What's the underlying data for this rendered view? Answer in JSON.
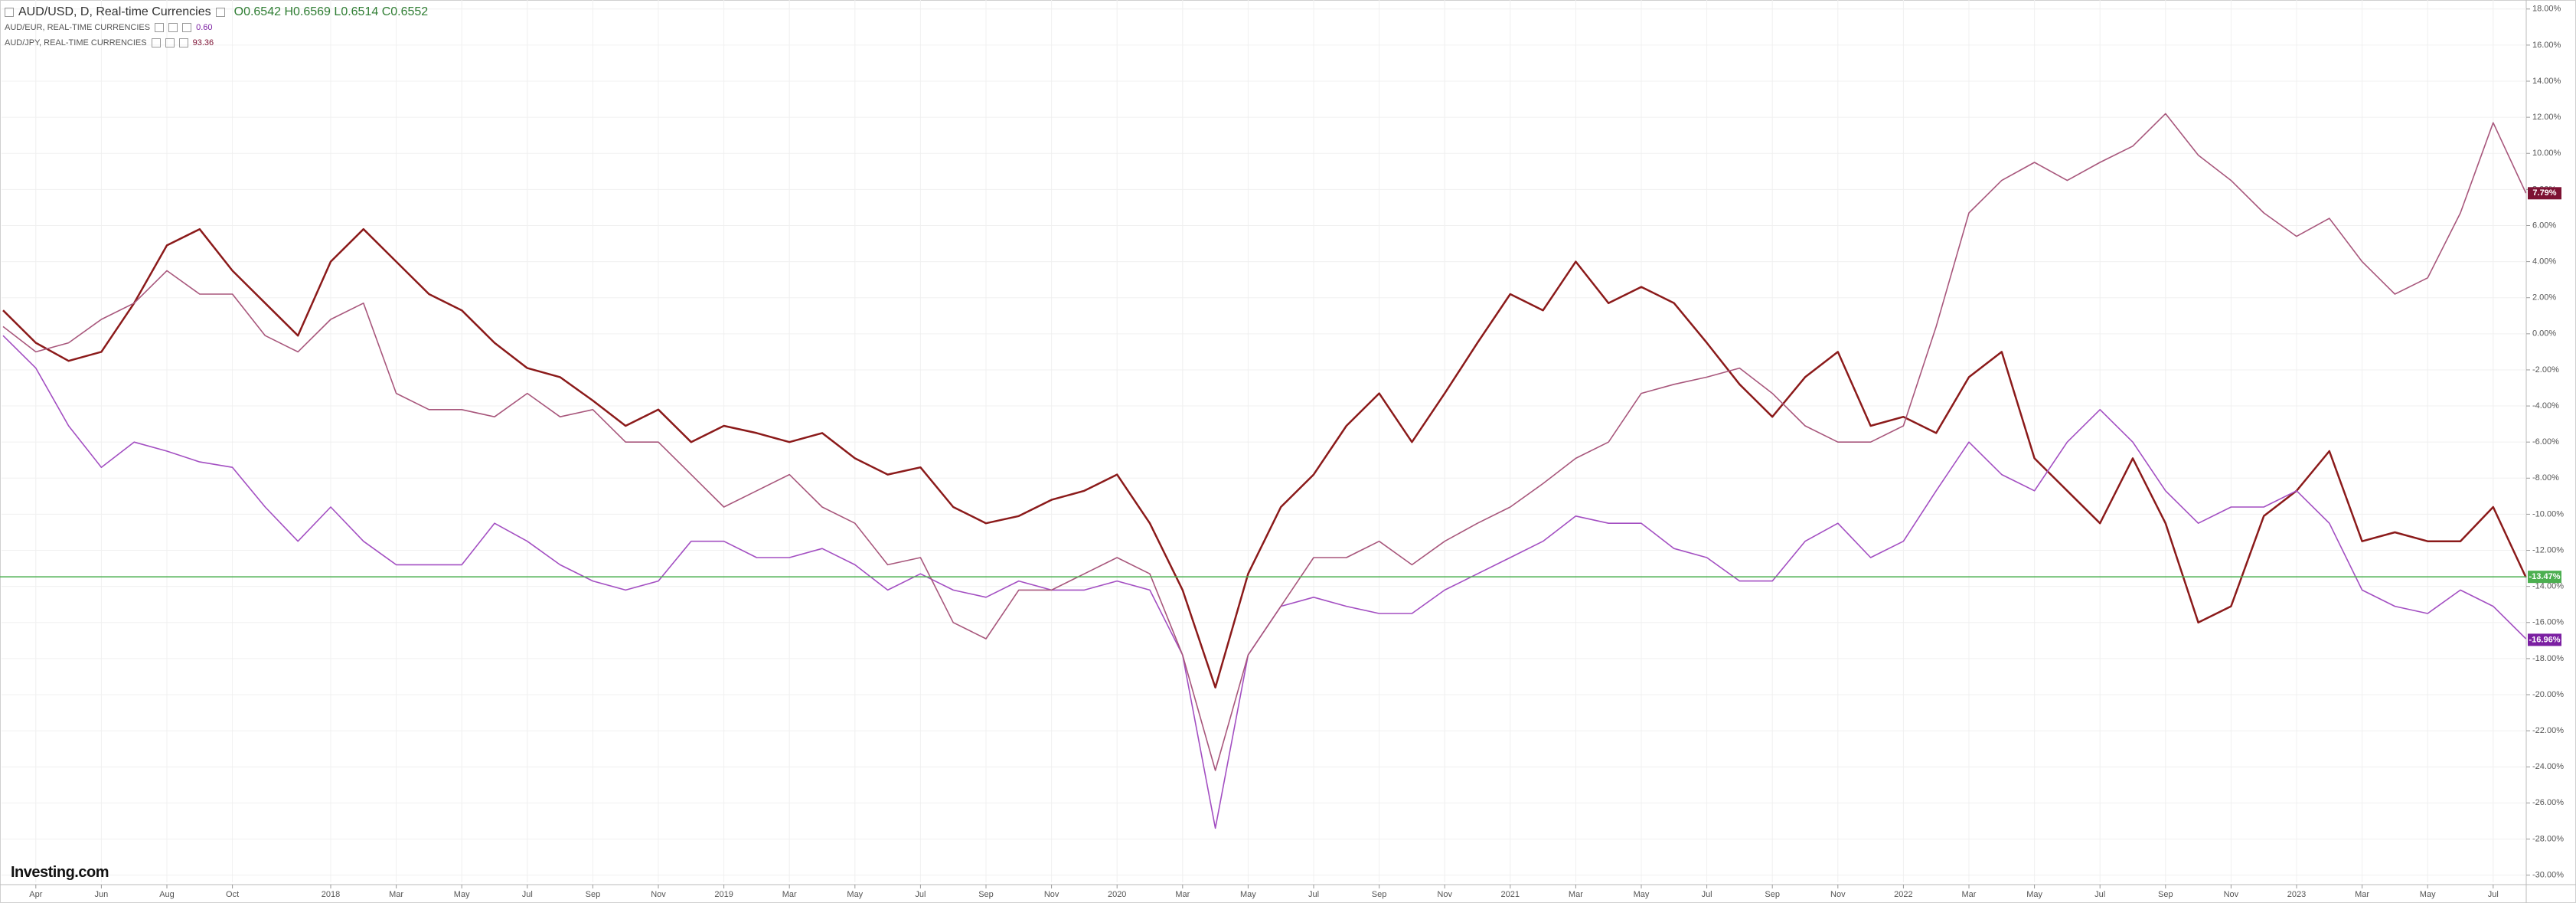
{
  "logo": "Investing.com",
  "chart_data": {
    "type": "line",
    "grid": true,
    "ohlc": [
      {
        "label": "O",
        "value": 0.6542
      },
      {
        "label": "H",
        "value": 0.6569
      },
      {
        "label": "L",
        "value": 0.6514
      },
      {
        "label": "C",
        "value": 0.6552
      }
    ],
    "categories": [
      null,
      "Apr",
      null,
      "Jun",
      null,
      "Aug",
      null,
      "Oct",
      null,
      null,
      "2018",
      null,
      "Mar",
      null,
      "May",
      null,
      "Jul",
      null,
      "Sep",
      null,
      "Nov",
      null,
      "2019",
      null,
      "Mar",
      null,
      "May",
      null,
      "Jul",
      null,
      "Sep",
      null,
      "Nov",
      null,
      "2020",
      null,
      "Mar",
      null,
      "May",
      null,
      "Jul",
      null,
      "Sep",
      null,
      "Nov",
      null,
      "2021",
      null,
      "Mar",
      null,
      "May",
      null,
      "Jul",
      null,
      "Sep",
      null,
      "Nov",
      null,
      "2022",
      null,
      "Mar",
      null,
      "May",
      null,
      "Jul",
      null,
      "Sep",
      null,
      "Nov",
      null,
      "2023",
      null,
      "Mar",
      null,
      "May",
      null,
      "Jul",
      null
    ],
    "ylim": [
      -30.4,
      18.5
    ],
    "yticks": [
      {
        "value": 18,
        "label": "18.00%"
      },
      {
        "value": 16,
        "label": "16.00%"
      },
      {
        "value": 14,
        "label": "14.00%"
      },
      {
        "value": 12,
        "label": "12.00%"
      },
      {
        "value": 10,
        "label": "10.00%"
      },
      {
        "value": 8,
        "label": "8.00%"
      },
      {
        "value": 6,
        "label": "6.00%"
      },
      {
        "value": 4,
        "label": "4.00%"
      },
      {
        "value": 2,
        "label": "2.00%"
      },
      {
        "value": 0,
        "label": "0.00%"
      },
      {
        "value": -2,
        "label": "-2.00%"
      },
      {
        "value": -4,
        "label": "-4.00%"
      },
      {
        "value": -6,
        "label": "-6.00%"
      },
      {
        "value": -8,
        "label": "-8.00%"
      },
      {
        "value": -10,
        "label": "-10.00%"
      },
      {
        "value": -12,
        "label": "-12.00%"
      },
      {
        "value": -14,
        "label": "-14.00%"
      },
      {
        "value": -16,
        "label": "-16.00%"
      },
      {
        "value": -18,
        "label": "-18.00%"
      },
      {
        "value": -20,
        "label": "-20.00%"
      },
      {
        "value": -22,
        "label": "-22.00%"
      },
      {
        "value": -24,
        "label": "-24.00%"
      },
      {
        "value": -26,
        "label": "-26.00%"
      },
      {
        "value": -28,
        "label": "-28.00%"
      },
      {
        "value": -30,
        "label": "-30.00%"
      }
    ],
    "series": [
      {
        "name": "AUD/USD, D, Real-time Currencies",
        "color": "#8b1a1a",
        "badge": {
          "value": -13.47,
          "label": "-13.47%",
          "color": "#4caf50"
        },
        "values": [
          1.3,
          -0.5,
          -1.5,
          -1.0,
          1.7,
          4.9,
          5.8,
          3.5,
          1.7,
          -0.1,
          4.0,
          5.8,
          4.0,
          2.2,
          1.3,
          -0.5,
          -1.9,
          -2.4,
          -3.7,
          -5.1,
          -4.2,
          -6.0,
          -5.1,
          -5.5,
          -6.0,
          -5.5,
          -6.9,
          -7.8,
          -7.4,
          -9.6,
          -10.5,
          -10.1,
          -9.2,
          -8.7,
          -7.8,
          -10.5,
          -14.2,
          -19.6,
          -13.3,
          -9.6,
          -7.8,
          -5.1,
          -3.3,
          -6.0,
          -3.3,
          -0.5,
          2.2,
          1.3,
          4.0,
          1.7,
          2.6,
          1.7,
          -0.5,
          -2.8,
          -4.6,
          -2.4,
          -1.0,
          -5.1,
          -4.6,
          -5.5,
          -2.4,
          -1.0,
          -6.9,
          -8.7,
          -10.5,
          -6.9,
          -10.5,
          -16.0,
          -15.1,
          -10.1,
          -8.7,
          -6.5,
          -11.5,
          -11.0,
          -11.5,
          -11.5,
          -9.6,
          -13.5
        ]
      },
      {
        "name": "AUD/EUR, REAL-TIME CURRENCIES",
        "color": "#a34fc2",
        "legend_value": "0.60",
        "badge": {
          "value": -16.96,
          "label": "-16.96%",
          "color": "#7b1fa2"
        },
        "values": [
          -0.1,
          -1.9,
          -5.1,
          -7.4,
          -6.0,
          -6.5,
          -7.1,
          -7.4,
          -9.6,
          -11.5,
          -9.6,
          -11.5,
          -12.8,
          -12.8,
          -12.8,
          -10.5,
          -11.5,
          -12.8,
          -13.7,
          -14.2,
          -13.7,
          -11.5,
          -11.5,
          -12.4,
          -12.4,
          -11.9,
          -12.8,
          -14.2,
          -13.3,
          -14.2,
          -14.6,
          -13.7,
          -14.2,
          -14.2,
          -13.7,
          -14.2,
          -17.8,
          -27.4,
          -17.8,
          -15.1,
          -14.6,
          -15.1,
          -15.5,
          -15.5,
          -14.2,
          -13.3,
          -12.4,
          -11.5,
          -10.1,
          -10.5,
          -10.5,
          -11.9,
          -12.4,
          -13.7,
          -13.7,
          -11.5,
          -10.5,
          -12.4,
          -11.5,
          -8.7,
          -6.0,
          -7.8,
          -8.7,
          -6.0,
          -4.2,
          -6.0,
          -8.7,
          -10.5,
          -9.6,
          -9.6,
          -8.7,
          -10.5,
          -14.2,
          -15.1,
          -15.5,
          -14.2,
          -15.1,
          -16.9
        ]
      },
      {
        "name": "AUD/JPY, REAL-TIME CURRENCIES",
        "color": "#a8577c",
        "legend_value": "93.36",
        "badge": {
          "value": 7.79,
          "label": "7.79%",
          "color": "#7d1233"
        },
        "values": [
          0.4,
          -1.0,
          -0.5,
          0.8,
          1.7,
          3.5,
          2.2,
          2.2,
          -0.1,
          -1.0,
          0.8,
          1.7,
          -3.3,
          -4.2,
          -4.2,
          -4.6,
          -3.3,
          -4.6,
          -4.2,
          -6.0,
          -6.0,
          -7.8,
          -9.6,
          -8.7,
          -7.8,
          -9.6,
          -10.5,
          -12.8,
          -12.4,
          -16.0,
          -16.9,
          -14.2,
          -14.2,
          -13.3,
          -12.4,
          -13.3,
          -17.8,
          -24.2,
          -17.8,
          -15.1,
          -12.4,
          -12.4,
          -11.5,
          -12.8,
          -11.5,
          -10.5,
          -9.6,
          -8.3,
          -6.9,
          -6.0,
          -3.3,
          -2.8,
          -2.4,
          -1.9,
          -3.3,
          -5.1,
          -6.0,
          -6.0,
          -5.1,
          0.4,
          6.7,
          8.5,
          9.5,
          8.5,
          9.5,
          10.4,
          12.2,
          9.9,
          8.5,
          6.7,
          5.4,
          6.4,
          4.0,
          2.2,
          3.1,
          6.7,
          11.7,
          7.8
        ]
      }
    ]
  }
}
